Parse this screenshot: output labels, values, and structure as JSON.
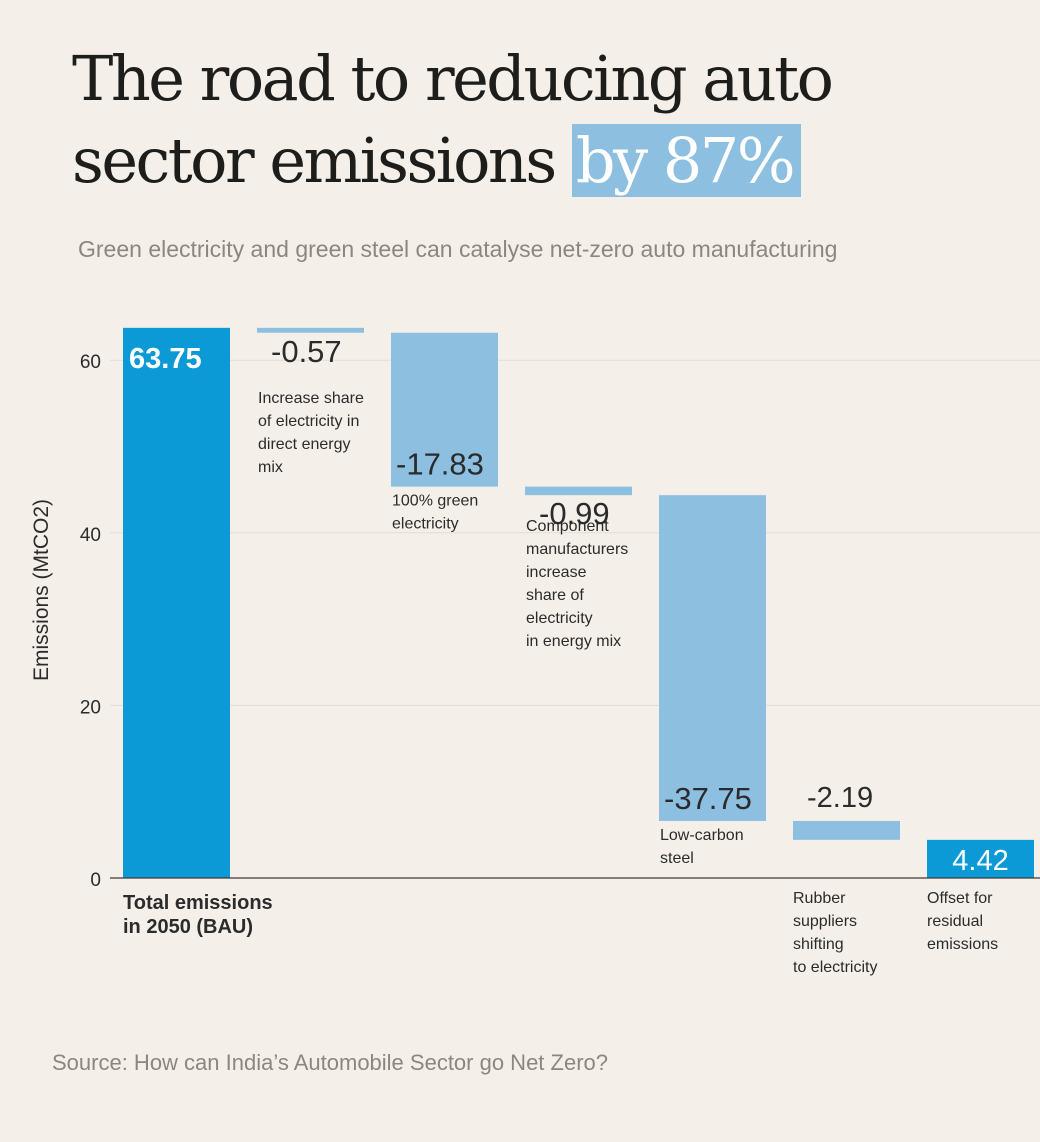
{
  "title": {
    "main": "The road to reducing auto sector emissions",
    "highlight": "by 87%"
  },
  "subtitle": "Green electricity and green steel can catalyse net-zero auto manufacturing",
  "source": "Source: How can India’s Automobile Sector go Net Zero?",
  "colors": {
    "background": "#f4f0e9",
    "total_bar": "#0c9ad6",
    "reduction_bar": "#8dbfe0",
    "text": "#2b2b2b",
    "muted": "#8b877f"
  },
  "chart_data": {
    "type": "waterfall",
    "ylabel": "Emissions (MtCO2)",
    "ylim": [
      0,
      65
    ],
    "yticks": [
      0,
      20,
      40,
      60
    ],
    "grid": true,
    "steps": [
      {
        "label": [
          "Total emissions",
          "in 2050 (BAU)"
        ],
        "value_label": "63.75",
        "value": 63.75,
        "kind": "total",
        "label_style": "bold-bottom"
      },
      {
        "label": [
          "Increase share",
          "of electricity in",
          "direct energy",
          "mix"
        ],
        "value_label": "-0.57",
        "value": -0.57,
        "kind": "reduction",
        "label_style": "below-bar"
      },
      {
        "label": [
          "100% green",
          "electricity"
        ],
        "value_label": "-17.83",
        "value": -17.83,
        "kind": "reduction",
        "label_style": "below-bar"
      },
      {
        "label": [
          "Component",
          "manufacturers",
          "increase",
          "share of",
          "electricity",
          "in energy mix"
        ],
        "value_label": "-0.99",
        "value": -0.99,
        "kind": "reduction",
        "label_style": "below-bar"
      },
      {
        "label": [
          "Low-carbon",
          "steel"
        ],
        "value_label": "-37.75",
        "value": -37.75,
        "kind": "reduction",
        "label_style": "below-bar"
      },
      {
        "label": [
          "Rubber",
          "suppliers",
          "shifting",
          "to electricity"
        ],
        "value_label": "-2.19",
        "value": -2.19,
        "kind": "reduction",
        "label_style": "bottom"
      },
      {
        "label": [
          "Offset for",
          "residual",
          "emissions"
        ],
        "value_label": "4.42",
        "value": 4.42,
        "kind": "final",
        "label_style": "bottom"
      }
    ]
  }
}
